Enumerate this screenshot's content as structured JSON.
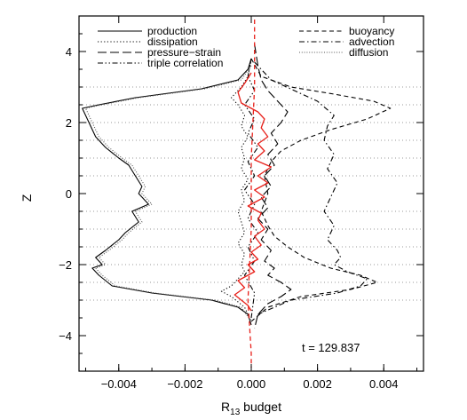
{
  "chart_data": {
    "type": "line",
    "title": "",
    "xlabel": "R",
    "xlabel_sub": "13",
    "xlabel_rest": " budget",
    "ylabel": "Z",
    "xlim": [
      -0.0052,
      0.0052
    ],
    "ylim": [
      -5,
      5
    ],
    "xticks": [
      -0.004,
      -0.002,
      0.0,
      0.002,
      0.004
    ],
    "xtick_labels": [
      "−0.004",
      "−0.002",
      "0.000",
      "0.002",
      "0.004"
    ],
    "yticks": [
      -4,
      -2,
      0,
      2,
      4
    ],
    "ytick_labels": [
      "−4",
      "−2",
      "0",
      "2",
      "4"
    ],
    "hlines_dotted": [
      -3,
      -2.5,
      -2,
      -1.5,
      -1,
      -0.5,
      0.5,
      1,
      1.5,
      2,
      2.5,
      3
    ],
    "annotation": "t = 129.837",
    "grid": false,
    "legend_left": [
      "production",
      "dissipation",
      "pressure−strain",
      "triple correlation"
    ],
    "legend_right": [
      "buoyancy",
      "advection",
      "diffusion"
    ],
    "series": [
      {
        "name": "production",
        "style": "solid",
        "color": "#000000",
        "x": [
          0,
          -0.0001,
          -0.0004,
          -0.0015,
          -0.0035,
          -0.0046,
          -0.0051,
          -0.0049,
          -0.0047,
          -0.0044,
          -0.004,
          -0.0037,
          -0.0035,
          -0.0033,
          -0.0034,
          -0.0031,
          -0.0036,
          -0.0034,
          -0.0038,
          -0.004,
          -0.0044,
          -0.0047,
          -0.0045,
          -0.0048,
          -0.0046,
          -0.0042,
          -0.003,
          -0.0012,
          -0.0004,
          -0.0001,
          0
        ],
        "y": [
          3.8,
          3.5,
          3.2,
          2.95,
          2.7,
          2.5,
          2.4,
          2.0,
          1.6,
          1.3,
          1.0,
          0.8,
          0.5,
          0.2,
          0.0,
          -0.3,
          -0.5,
          -0.8,
          -1.1,
          -1.3,
          -1.6,
          -1.8,
          -2.0,
          -2.1,
          -2.3,
          -2.6,
          -2.8,
          -3.0,
          -3.2,
          -3.4,
          -3.7
        ]
      },
      {
        "name": "dissipation",
        "style": "dotted",
        "color": "#000000",
        "x": [
          0,
          -0.0001,
          -0.0003,
          -0.0006,
          -0.0004,
          -0.0002,
          -0.0003,
          -0.0001,
          -0.0003,
          -0.0002,
          -0.0003,
          -0.0001,
          -0.0003,
          -0.0002,
          -0.0004,
          -0.0003,
          -0.0002,
          -0.0004,
          -0.0002,
          -0.0003,
          -0.0002,
          -0.0004,
          -0.0006,
          -0.0009,
          -0.0006,
          -0.0002,
          0
        ],
        "y": [
          3.8,
          3.3,
          3.0,
          2.7,
          2.5,
          2.2,
          1.9,
          1.6,
          1.3,
          1.0,
          0.7,
          0.4,
          0.1,
          -0.2,
          -0.5,
          -0.8,
          -1.1,
          -1.4,
          -1.7,
          -2.0,
          -2.2,
          -2.4,
          -2.6,
          -2.75,
          -2.9,
          -3.2,
          -3.6
        ]
      },
      {
        "name": "pressure−strain",
        "style": "longdash",
        "color": "#000000",
        "x": [
          0.0001,
          0.0002,
          0.0003,
          0.0005,
          0.0008,
          0.0011,
          0.0009,
          0.0006,
          0.0008,
          0.0005,
          0.0007,
          0.0004,
          0.0006,
          0.0003,
          0.0005,
          0.0002,
          0.0005,
          0.0003,
          0.0006,
          0.0004,
          0.0007,
          0.0005,
          0.0009,
          0.0012,
          0.0009,
          0.0005,
          0.0002,
          0.0001
        ],
        "y": [
          4.2,
          3.6,
          3.2,
          2.9,
          2.6,
          2.3,
          2.0,
          1.7,
          1.4,
          1.1,
          0.8,
          0.5,
          0.2,
          -0.1,
          -0.4,
          -0.7,
          -1.0,
          -1.3,
          -1.6,
          -1.9,
          -2.1,
          -2.3,
          -2.5,
          -2.7,
          -2.9,
          -3.1,
          -3.4,
          -3.8
        ]
      },
      {
        "name": "triple correlation",
        "style": "dashdotdot",
        "color": "#000000",
        "x": [
          0,
          -0.0001,
          0.0001,
          -0.0002,
          0.0001,
          -0.0001,
          0.0002,
          -0.0001,
          0.0001,
          -0.0002,
          0.0001,
          -0.0001,
          0.0002,
          -0.0001,
          0.0001,
          -0.0002,
          0.0001,
          0
        ],
        "y": [
          3.8,
          3.3,
          2.9,
          2.5,
          2.1,
          1.7,
          1.3,
          0.9,
          0.5,
          0.1,
          -0.3,
          -0.7,
          -1.1,
          -1.5,
          -1.9,
          -2.3,
          -2.8,
          -3.5
        ]
      },
      {
        "name": "buoyancy",
        "style": "dashed",
        "color": "#000000",
        "x": [
          0,
          0.0003,
          0.0012,
          0.0025,
          0.0037,
          0.0042,
          0.0035,
          0.0024,
          0.0015,
          0.0009,
          0.0006,
          0.0004,
          0.0005,
          0.0003,
          0.0005,
          0.0007,
          0.0011,
          0.0016,
          0.0024,
          0.0033,
          0.0038,
          0.003,
          0.0015,
          0.0005,
          0
        ],
        "y": [
          3.8,
          3.3,
          3.0,
          2.8,
          2.6,
          2.4,
          2.1,
          1.8,
          1.5,
          1.2,
          0.9,
          0.5,
          0.0,
          -0.5,
          -0.9,
          -1.2,
          -1.5,
          -1.8,
          -2.1,
          -2.3,
          -2.5,
          -2.7,
          -2.9,
          -3.2,
          -3.6
        ]
      },
      {
        "name": "advection",
        "style": "dashdot",
        "color": "#000000",
        "x": [
          0.0001,
          0.0006,
          0.0013,
          0.002,
          0.0025,
          0.0023,
          0.0022,
          0.0025,
          0.0023,
          0.0026,
          0.0024,
          0.0022,
          0.0025,
          0.0023,
          0.0026,
          0.0027,
          0.0025,
          0.0029,
          0.0035,
          0.0033,
          0.0026,
          0.0012,
          0.0002
        ],
        "y": [
          3.7,
          3.2,
          2.9,
          2.6,
          2.2,
          1.9,
          1.5,
          1.1,
          0.7,
          0.3,
          -0.1,
          -0.5,
          -0.9,
          -1.3,
          -1.6,
          -1.8,
          -2.0,
          -2.2,
          -2.4,
          -2.6,
          -2.8,
          -3.0,
          -3.4
        ]
      },
      {
        "name": "diffusion",
        "style": "dotted-fine",
        "color": "#555555",
        "x": [
          0,
          -0.0003,
          -0.0014,
          -0.0034,
          -0.0045,
          -0.005,
          -0.0048,
          -0.0046,
          -0.0043,
          -0.0039,
          -0.0036,
          -0.0034,
          -0.0032,
          -0.0033,
          -0.003,
          -0.0035,
          -0.0033,
          -0.0037,
          -0.0039,
          -0.0043,
          -0.0046,
          -0.0044,
          -0.0047,
          -0.0045,
          -0.0041,
          -0.0029,
          -0.0011,
          -0.0003,
          0
        ],
        "y": [
          3.6,
          3.2,
          2.95,
          2.7,
          2.5,
          2.4,
          2.0,
          1.6,
          1.3,
          1.0,
          0.8,
          0.5,
          0.2,
          0.0,
          -0.3,
          -0.5,
          -0.8,
          -1.1,
          -1.3,
          -1.6,
          -1.8,
          -2.0,
          -2.1,
          -2.3,
          -2.6,
          -2.8,
          -3.0,
          -3.2,
          -3.6
        ]
      },
      {
        "name": "",
        "style": "solid",
        "color": "#e8201a",
        "x": [
          0,
          -0.0002,
          -0.0004,
          -0.0003,
          0.0002,
          0.0004,
          0.0003,
          0.0005,
          0.0002,
          0.0004,
          0.0001,
          0.0006,
          0.0002,
          0.0005,
          0.0001,
          0.0004,
          -0.0001,
          0.0003,
          0.0002,
          0.0004,
          0.0001,
          0.0003,
          0.0,
          0.0002,
          -0.0001,
          0.0001,
          -0.0004,
          -0.0002,
          -0.0005,
          -0.0003,
          -0.0001,
          0
        ],
        "y": [
          3.4,
          3.1,
          2.85,
          2.55,
          2.3,
          2.1,
          1.85,
          1.6,
          1.4,
          1.2,
          0.95,
          0.75,
          0.5,
          0.3,
          0.1,
          -0.1,
          -0.35,
          -0.55,
          -0.75,
          -1.0,
          -1.2,
          -1.45,
          -1.65,
          -1.85,
          -2.0,
          -2.2,
          -2.45,
          -2.65,
          -2.85,
          -3.0,
          -3.15,
          -3.3
        ]
      },
      {
        "name": "",
        "style": "dashed",
        "color": "#e8201a",
        "x": [
          0.0001,
          0.0001,
          0.0,
          0.0,
          -0.0001,
          0.0,
          0.0
        ],
        "y": [
          4.9,
          3.0,
          1.0,
          -1.0,
          -3.0,
          -4.5,
          -4.9
        ]
      }
    ]
  }
}
